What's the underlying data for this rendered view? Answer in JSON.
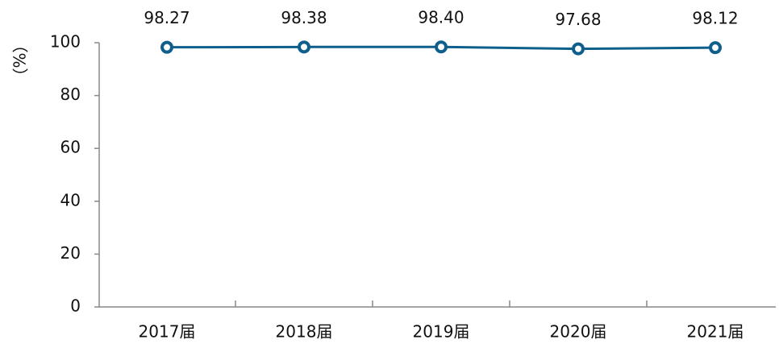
{
  "chart_data": {
    "type": "line",
    "y_label": "（%）",
    "categories": [
      "2017届",
      "2018届",
      "2019届",
      "2020届",
      "2021届"
    ],
    "series": [
      {
        "color": "#0f5f8c",
        "values": [
          98.27,
          98.38,
          98.4,
          97.68,
          98.12
        ],
        "value_labels": [
          "98.27",
          "98.38",
          "98.40",
          "97.68",
          "98.12"
        ]
      }
    ],
    "ylim": [
      0,
      100
    ],
    "yticks": [
      0,
      20,
      40,
      60,
      80,
      100
    ],
    "grid": false
  }
}
